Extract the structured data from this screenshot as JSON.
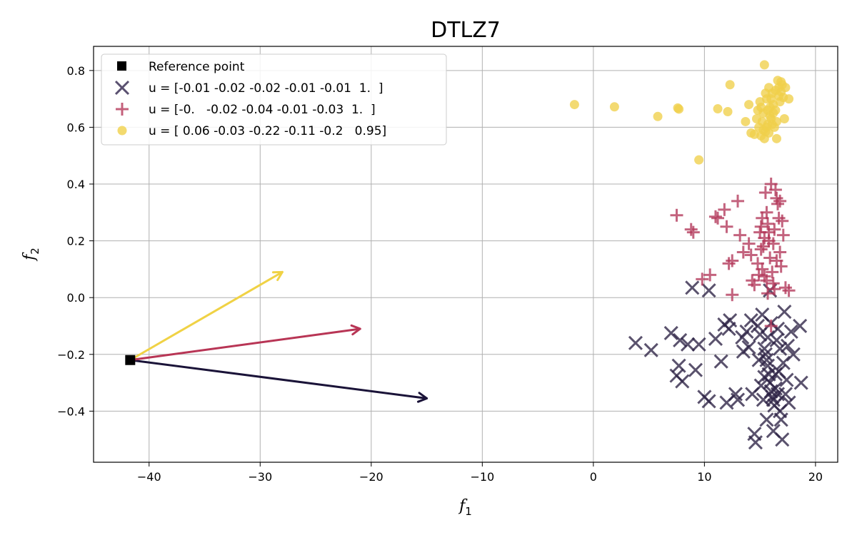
{
  "chart_data": {
    "type": "scatter",
    "title": "DTLZ7",
    "xlabel": {
      "base": "f",
      "sub": "1"
    },
    "ylabel": {
      "base": "f",
      "sub": "2"
    },
    "xlim": [
      -45,
      22
    ],
    "ylim": [
      -0.58,
      0.885
    ],
    "xticks": [
      -40,
      -30,
      -20,
      -10,
      0,
      10,
      20
    ],
    "xtick_labels": [
      "−40",
      "−30",
      "−20",
      "−10",
      "0",
      "10",
      "20"
    ],
    "yticks": [
      -0.4,
      -0.2,
      0.0,
      0.2,
      0.4,
      0.6,
      0.8
    ],
    "ytick_labels": [
      "−0.4",
      "−0.2",
      "0.0",
      "0.2",
      "0.4",
      "0.6",
      "0.8"
    ],
    "grid": true,
    "legend_position": "top-left",
    "reference_point": {
      "label": "Reference point",
      "x": -41.7,
      "y": -0.22,
      "color": "#000000"
    },
    "series": [
      {
        "name": "u = [-0.01 -0.02 -0.02 -0.01 -0.01  1.  ]",
        "marker": "x",
        "color": "#2d2245",
        "legend_color": "#5a5070",
        "arrow": {
          "x": -15,
          "y": -0.355,
          "color": "#1a1338"
        },
        "points": [
          [
            3.8,
            -0.16
          ],
          [
            5.2,
            -0.185
          ],
          [
            7.0,
            -0.125
          ],
          [
            7.8,
            -0.15
          ],
          [
            7.7,
            -0.24
          ],
          [
            7.5,
            -0.275
          ],
          [
            8.0,
            -0.295
          ],
          [
            8.5,
            -0.165
          ],
          [
            9.2,
            -0.255
          ],
          [
            9.5,
            -0.165
          ],
          [
            8.9,
            0.035
          ],
          [
            10.4,
            0.025
          ],
          [
            10.0,
            -0.35
          ],
          [
            10.4,
            -0.365
          ],
          [
            11.0,
            -0.145
          ],
          [
            11.5,
            -0.225
          ],
          [
            11.8,
            -0.095
          ],
          [
            12.0,
            -0.37
          ],
          [
            12.3,
            -0.08
          ],
          [
            12.2,
            -0.11
          ],
          [
            12.8,
            -0.34
          ],
          [
            13.0,
            -0.36
          ],
          [
            13.4,
            -0.14
          ],
          [
            13.8,
            -0.12
          ],
          [
            14.0,
            -0.175
          ],
          [
            14.3,
            -0.34
          ],
          [
            14.5,
            -0.48
          ],
          [
            14.6,
            -0.51
          ],
          [
            14.8,
            -0.1
          ],
          [
            15.0,
            -0.13
          ],
          [
            15.2,
            -0.06
          ],
          [
            15.4,
            -0.18
          ],
          [
            15.5,
            -0.2
          ],
          [
            15.6,
            -0.22
          ],
          [
            15.7,
            -0.24
          ],
          [
            15.8,
            -0.27
          ],
          [
            15.9,
            -0.3
          ],
          [
            16.0,
            -0.33
          ],
          [
            16.1,
            -0.35
          ],
          [
            16.2,
            -0.36
          ],
          [
            16.3,
            -0.38
          ],
          [
            16.4,
            -0.32
          ],
          [
            16.5,
            -0.15
          ],
          [
            16.6,
            -0.11
          ],
          [
            16.7,
            -0.26
          ],
          [
            16.8,
            -0.4
          ],
          [
            16.9,
            -0.43
          ],
          [
            17.0,
            -0.5
          ],
          [
            17.1,
            -0.23
          ],
          [
            17.2,
            -0.05
          ],
          [
            17.4,
            -0.29
          ],
          [
            17.5,
            -0.17
          ],
          [
            17.8,
            -0.12
          ],
          [
            18.0,
            -0.2
          ],
          [
            18.6,
            -0.1
          ],
          [
            18.7,
            -0.3
          ],
          [
            15.9,
            0.025
          ],
          [
            15.3,
            -0.36
          ],
          [
            15.6,
            -0.43
          ],
          [
            16.2,
            -0.47
          ],
          [
            16.6,
            -0.34
          ],
          [
            15.1,
            -0.31
          ],
          [
            16.0,
            -0.09
          ],
          [
            15.4,
            -0.28
          ],
          [
            16.8,
            -0.18
          ],
          [
            17.3,
            -0.34
          ],
          [
            14.9,
            -0.22
          ],
          [
            15.7,
            -0.14
          ],
          [
            16.4,
            -0.27
          ],
          [
            17.6,
            -0.37
          ],
          [
            13.5,
            -0.19
          ],
          [
            14.2,
            -0.08
          ]
        ]
      },
      {
        "name": "u = [-0.   -0.02 -0.04 -0.01 -0.03  1.  ]",
        "marker": "+",
        "color": "#b3385a",
        "legend_color": "#c4607b",
        "arrow": {
          "x": -21,
          "y": -0.11,
          "color": "#b83555"
        },
        "points": [
          [
            7.5,
            0.29
          ],
          [
            8.8,
            0.24
          ],
          [
            9.0,
            0.23
          ],
          [
            9.8,
            0.065
          ],
          [
            10.5,
            0.08
          ],
          [
            11.0,
            0.285
          ],
          [
            11.2,
            0.28
          ],
          [
            11.8,
            0.31
          ],
          [
            12.0,
            0.25
          ],
          [
            12.2,
            0.12
          ],
          [
            12.5,
            0.13
          ],
          [
            12.5,
            0.01
          ],
          [
            13.0,
            0.34
          ],
          [
            13.2,
            0.22
          ],
          [
            13.5,
            0.16
          ],
          [
            14.0,
            0.19
          ],
          [
            14.2,
            0.15
          ],
          [
            14.3,
            0.06
          ],
          [
            14.5,
            0.045
          ],
          [
            14.8,
            0.12
          ],
          [
            15.0,
            0.23
          ],
          [
            15.1,
            0.25
          ],
          [
            15.2,
            0.1
          ],
          [
            15.3,
            0.18
          ],
          [
            15.4,
            0.21
          ],
          [
            15.5,
            0.37
          ],
          [
            15.6,
            0.3
          ],
          [
            15.7,
            0.26
          ],
          [
            15.8,
            0.2
          ],
          [
            15.9,
            0.14
          ],
          [
            16.0,
            0.4
          ],
          [
            16.1,
            0.09
          ],
          [
            16.2,
            0.05
          ],
          [
            16.3,
            0.03
          ],
          [
            16.4,
            0.38
          ],
          [
            16.5,
            0.35
          ],
          [
            16.6,
            0.33
          ],
          [
            16.7,
            0.28
          ],
          [
            16.8,
            0.16
          ],
          [
            16.9,
            0.11
          ],
          [
            17.0,
            0.27
          ],
          [
            17.1,
            0.22
          ],
          [
            17.3,
            0.035
          ],
          [
            17.6,
            0.025
          ],
          [
            15.4,
            0.075
          ],
          [
            15.7,
            0.015
          ],
          [
            16.0,
            -0.1
          ],
          [
            15.2,
            0.28
          ],
          [
            14.9,
            0.08
          ],
          [
            16.2,
            0.19
          ],
          [
            15.8,
            0.23
          ],
          [
            16.5,
            0.13
          ],
          [
            15.1,
            0.17
          ],
          [
            16.3,
            0.24
          ],
          [
            15.6,
            0.06
          ],
          [
            16.8,
            0.34
          ]
        ]
      },
      {
        "name": "u = [ 0.06 -0.03 -0.22 -0.11 -0.2   0.95]",
        "marker": "o",
        "color": "#f0d04a",
        "legend_color": "#f3da6e",
        "arrow": {
          "x": -28,
          "y": 0.09,
          "color": "#f0d245"
        },
        "points": [
          [
            -1.7,
            0.68
          ],
          [
            1.9,
            0.672
          ],
          [
            5.8,
            0.638
          ],
          [
            7.6,
            0.668
          ],
          [
            7.7,
            0.664
          ],
          [
            9.5,
            0.485
          ],
          [
            11.2,
            0.665
          ],
          [
            12.1,
            0.655
          ],
          [
            12.3,
            0.75
          ],
          [
            13.7,
            0.62
          ],
          [
            14.0,
            0.68
          ],
          [
            14.2,
            0.58
          ],
          [
            14.5,
            0.575
          ],
          [
            14.7,
            0.63
          ],
          [
            14.8,
            0.66
          ],
          [
            14.9,
            0.6
          ],
          [
            15.0,
            0.69
          ],
          [
            15.1,
            0.57
          ],
          [
            15.2,
            0.62
          ],
          [
            15.3,
            0.65
          ],
          [
            15.4,
            0.82
          ],
          [
            15.5,
            0.585
          ],
          [
            15.6,
            0.7
          ],
          [
            15.7,
            0.61
          ],
          [
            15.8,
            0.74
          ],
          [
            15.9,
            0.67
          ],
          [
            16.0,
            0.63
          ],
          [
            16.1,
            0.72
          ],
          [
            16.2,
            0.68
          ],
          [
            16.3,
            0.6
          ],
          [
            16.4,
            0.66
          ],
          [
            16.5,
            0.56
          ],
          [
            16.6,
            0.765
          ],
          [
            16.7,
            0.71
          ],
          [
            16.8,
            0.69
          ],
          [
            16.9,
            0.725
          ],
          [
            17.0,
            0.75
          ],
          [
            17.1,
            0.705
          ],
          [
            17.2,
            0.63
          ],
          [
            17.3,
            0.74
          ],
          [
            17.6,
            0.7
          ],
          [
            15.4,
            0.56
          ],
          [
            15.6,
            0.6
          ],
          [
            15.9,
            0.64
          ],
          [
            16.2,
            0.65
          ],
          [
            15.1,
            0.67
          ],
          [
            16.0,
            0.7
          ],
          [
            15.5,
            0.72
          ],
          [
            16.4,
            0.73
          ],
          [
            15.8,
            0.58
          ],
          [
            16.7,
            0.74
          ],
          [
            15.3,
            0.59
          ],
          [
            16.1,
            0.61
          ],
          [
            15.7,
            0.66
          ],
          [
            16.5,
            0.62
          ],
          [
            16.9,
            0.76
          ]
        ]
      }
    ]
  }
}
